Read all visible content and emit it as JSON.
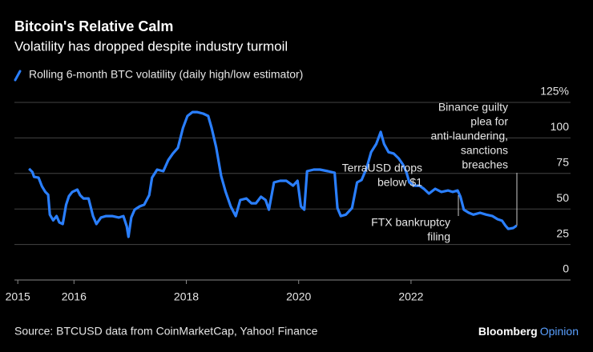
{
  "chart_data": {
    "type": "line",
    "title": "Bitcoin's Relative Calm",
    "subtitle": "Volatility has dropped despite industry turmoil",
    "source": "Source: BTCUSD data from CoinMarketCap, Yahoo! Finance",
    "logo": [
      "Bloomberg",
      "Opinion"
    ],
    "x": [
      2015.2,
      2015.26,
      2015.29,
      2015.37,
      2015.43,
      2015.49,
      2015.54,
      2015.57,
      2015.63,
      2015.69,
      2015.74,
      2015.8,
      2015.86,
      2015.91,
      2015.97,
      2016.06,
      2016.11,
      2016.17,
      2016.26,
      2016.34,
      2016.4,
      2016.48,
      2016.57,
      2016.68,
      2016.8,
      2016.88,
      2016.94,
      2016.97,
      2017.02,
      2017.08,
      2017.17,
      2017.25,
      2017.34,
      2017.39,
      2017.48,
      2017.59,
      2017.68,
      2017.76,
      2017.85,
      2017.94,
      2018.02,
      2018.11,
      2018.19,
      2018.3,
      2018.39,
      2018.45,
      2018.53,
      2018.62,
      2018.7,
      2018.79,
      2018.88,
      2018.96,
      2019.07,
      2019.16,
      2019.24,
      2019.33,
      2019.41,
      2019.47,
      2019.56,
      2019.67,
      2019.78,
      2019.9,
      2019.98,
      2020.04,
      2020.1,
      2020.15,
      2020.27,
      2020.38,
      2020.52,
      2020.64,
      2020.69,
      2020.75,
      2020.84,
      2020.95,
      2021.04,
      2021.12,
      2021.21,
      2021.29,
      2021.38,
      2021.46,
      2021.52,
      2021.6,
      2021.69,
      2021.78,
      2021.86,
      2021.92,
      2021.97,
      2022.06,
      2022.15,
      2022.23,
      2022.32,
      2022.43,
      2022.54,
      2022.66,
      2022.74,
      2022.83,
      2022.88,
      2022.94,
      2023.03,
      2023.11,
      2023.23,
      2023.34,
      2023.45,
      2023.54,
      2023.62,
      2023.68,
      2023.73,
      2023.82,
      2023.88
    ],
    "series": [
      {
        "name": "Rolling 6-month BTC volatility (daily high/low estimator)",
        "color": "#2a7fff",
        "values": [
          78.3,
          76,
          72.6,
          72,
          66,
          62,
          60,
          46,
          42,
          45,
          40.5,
          39.4,
          53,
          59,
          62,
          63.6,
          59.7,
          57.4,
          57.4,
          45,
          39.4,
          44,
          45,
          45,
          44,
          45,
          37.7,
          30.4,
          44,
          49.5,
          51.8,
          53,
          59.7,
          72,
          77.7,
          76.6,
          84.5,
          89,
          93,
          107,
          115.4,
          118.2,
          118.2,
          117.1,
          115.4,
          107,
          93.5,
          73.2,
          62,
          51.8,
          45,
          56.3,
          57.4,
          54,
          54,
          58.6,
          56.3,
          49.5,
          68.7,
          69.8,
          69.8,
          66.4,
          69.8,
          51.8,
          49.5,
          76.6,
          77.7,
          77.7,
          76.6,
          75.5,
          50.7,
          45,
          46,
          50.7,
          68.7,
          70.4,
          78.8,
          90,
          95.7,
          104.2,
          95.7,
          90,
          89,
          85.6,
          81,
          75.5,
          68.7,
          66.4,
          66.4,
          64.2,
          60.8,
          64.2,
          62,
          63,
          62,
          63,
          58.6,
          49.5,
          47.3,
          46,
          47.3,
          46,
          45,
          42.8,
          41.7,
          38.3,
          36,
          36.6,
          38.3
        ]
      }
    ],
    "xlim": [
      2014.94,
      2024.84
    ],
    "xticks": [
      2015,
      2016,
      2018,
      2020,
      2022
    ],
    "ylim": [
      0,
      125
    ],
    "yticks": [
      0,
      25,
      50,
      75,
      100,
      {
        "value": 125,
        "label": "125%"
      }
    ],
    "grid": true,
    "annotations": [
      {
        "lines": [
          "TerraUSD drops",
          "below $1"
        ]
      },
      {
        "lines": [
          "FTX bankruptcy",
          "filing"
        ]
      },
      {
        "lines": [
          "Binance guilty",
          "plea for",
          "anti-laundering,",
          "sanctions",
          "breaches"
        ]
      }
    ]
  }
}
